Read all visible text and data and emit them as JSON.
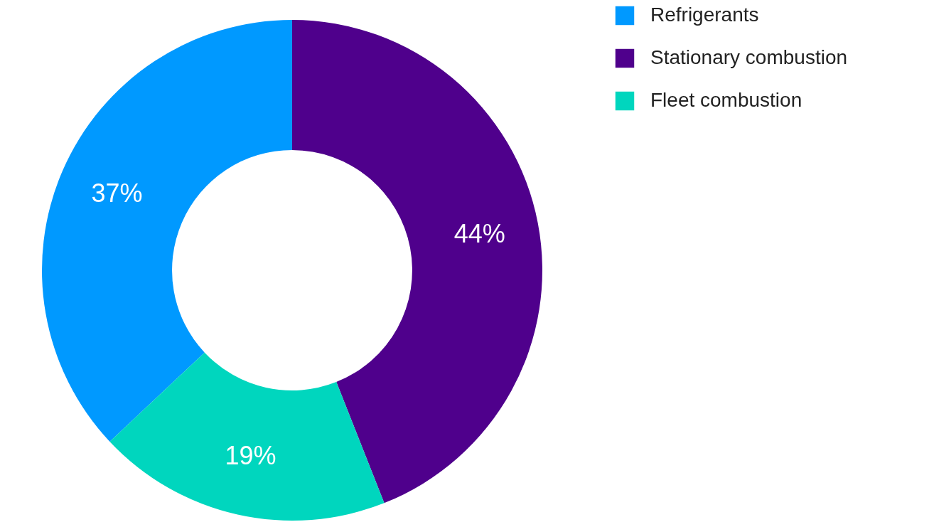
{
  "chart_data": {
    "type": "donut",
    "categories": [
      "Refrigerants",
      "Stationary combustion",
      "Fleet combustion"
    ],
    "values": [
      37,
      44,
      19
    ],
    "colors": [
      "#0099ff",
      "#4f008c",
      "#00d6be"
    ],
    "value_labels": [
      "37%",
      "44%",
      "19%"
    ],
    "legend": "top right"
  }
}
